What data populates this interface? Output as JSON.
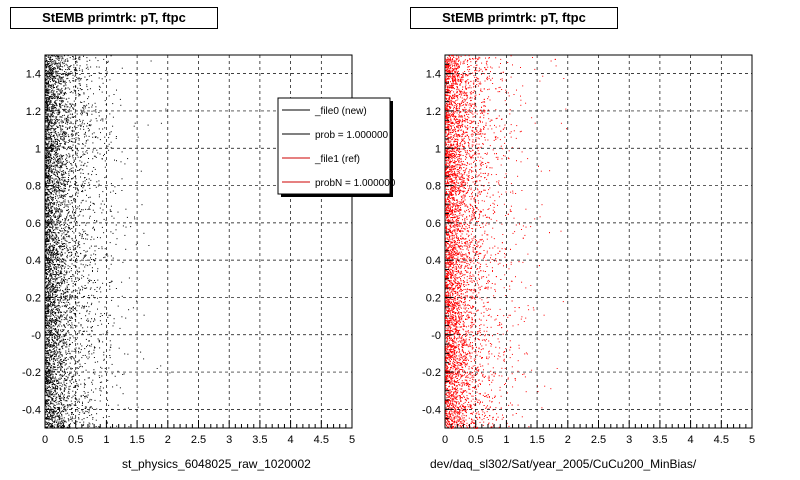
{
  "footer": "",
  "panels": [
    {
      "title": "StEMB primtrk: pT, ftpc",
      "xlabel": "st_physics_6048025_raw_1020002",
      "color": "#000000",
      "legend": [
        {
          "label": "_file0 (new)",
          "color": "#000000"
        },
        {
          "label": "prob = 1.000000",
          "color": "#000000"
        },
        {
          "label": "_file1 (ref)",
          "color": "#cc0000"
        },
        {
          "label": "probN = 1.000000",
          "color": "#cc0000"
        }
      ]
    },
    {
      "title": "StEMB primtrk: pT, ftpc",
      "xlabel": "dev/daq_sl302/Sat/year_2005/CuCu200_MinBias/",
      "color": "#ff0000",
      "legend": []
    }
  ],
  "chart_data": [
    {
      "type": "scatter",
      "title": "StEMB primtrk: pT, ftpc",
      "xlabel": "st_physics_6048025_raw_1020002",
      "ylabel": "",
      "xlim": [
        0,
        5
      ],
      "ylim": [
        -0.5,
        1.5
      ],
      "xticks": [
        "0",
        "0.5",
        "1",
        "1.5",
        "2",
        "2.5",
        "3",
        "3.5",
        "4",
        "4.5",
        "5"
      ],
      "yticks": [
        "-0.4",
        "-0.2",
        "-0",
        "0.2",
        "0.4",
        "0.6",
        "0.8",
        "1",
        "1.2",
        "1.4"
      ],
      "grid": true,
      "legend_position": "top-right",
      "series": [
        {
          "name": "_file0 (new)",
          "color": "#000000",
          "distribution": "dense near x=0, decaying with x"
        }
      ]
    },
    {
      "type": "scatter",
      "title": "StEMB primtrk: pT, ftpc",
      "xlabel": "dev/daq_sl302/Sat/year_2005/CuCu200_MinBias/",
      "ylabel": "",
      "xlim": [
        0,
        5
      ],
      "ylim": [
        -0.5,
        1.5
      ],
      "xticks": [
        "0",
        "0.5",
        "1",
        "1.5",
        "2",
        "2.5",
        "3",
        "3.5",
        "4",
        "4.5",
        "5"
      ],
      "yticks": [
        "-0.4",
        "-0.2",
        "-0",
        "0.2",
        "0.4",
        "0.6",
        "0.8",
        "1",
        "1.2",
        "1.4"
      ],
      "grid": true,
      "series": [
        {
          "name": "_file1 (ref)",
          "color": "#ff0000",
          "distribution": "dense near x=0, decaying with x"
        }
      ]
    }
  ]
}
